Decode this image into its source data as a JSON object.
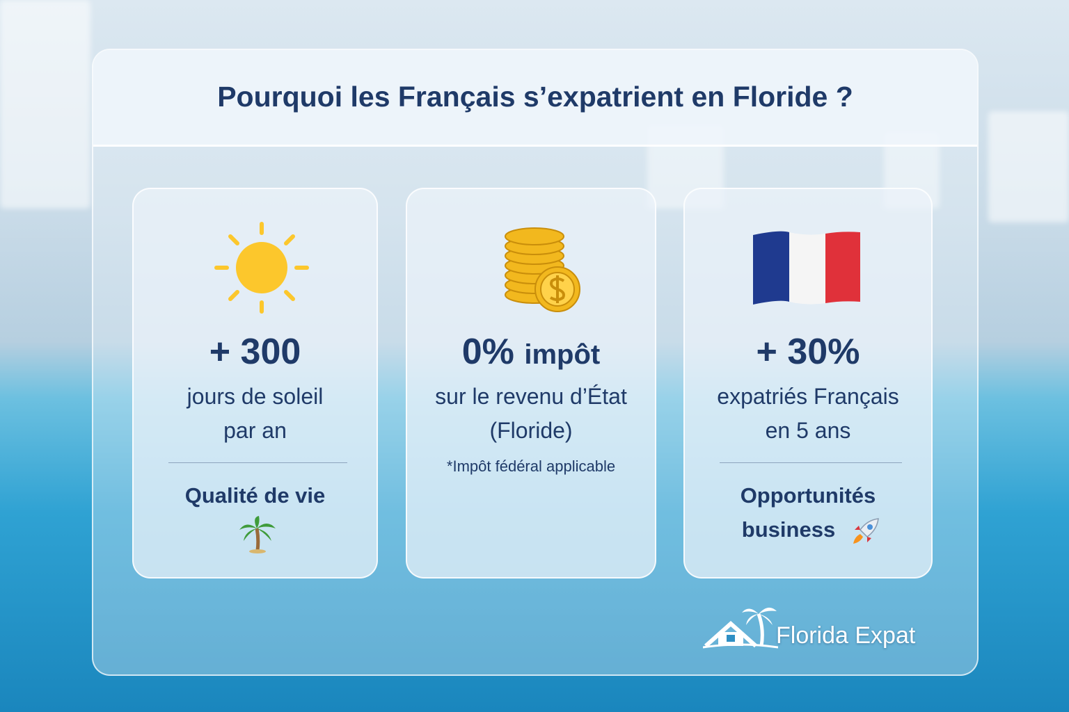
{
  "title": "Pourquoi les Français s’expatrient en Floride ?",
  "cards": [
    {
      "stat": "+ 300",
      "description": [
        "jours de soleil",
        "par an"
      ],
      "footer": [
        "Qualité de vie"
      ]
    },
    {
      "stat": "0%",
      "stat_suffix": "impôt",
      "description": [
        "sur le revenu d’État",
        "(Floride)"
      ],
      "note": "*Impôt fédéral applicable"
    },
    {
      "stat": "+ 30%",
      "description": [
        "expatriés Français",
        "en 5 ans"
      ],
      "footer": [
        "Opportunités",
        "business"
      ]
    }
  ],
  "logo": "Florida Expat"
}
